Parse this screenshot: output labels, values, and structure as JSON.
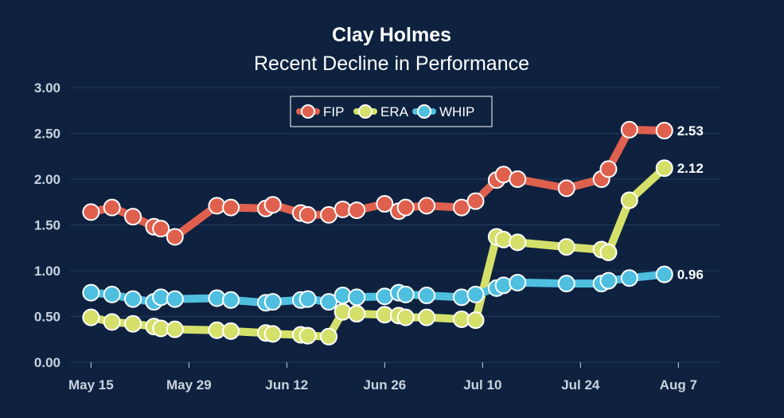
{
  "chart_data": {
    "type": "line",
    "title": "Clay Holmes",
    "subtitle": "Recent Decline in Performance",
    "xlabel": "",
    "ylabel": "",
    "ylim": [
      0,
      3
    ],
    "y_ticks": [
      "0.00",
      "0.50",
      "1.00",
      "1.50",
      "2.00",
      "2.50",
      "3.00"
    ],
    "x_ticks": [
      {
        "date": "2022-05-15",
        "label": "May 15"
      },
      {
        "date": "2022-05-29",
        "label": "May 29"
      },
      {
        "date": "2022-06-12",
        "label": "Jun 12"
      },
      {
        "date": "2022-06-26",
        "label": "Jun 26"
      },
      {
        "date": "2022-07-10",
        "label": "Jul 10"
      },
      {
        "date": "2022-07-24",
        "label": "Jul 24"
      },
      {
        "date": "2022-08-07",
        "label": "Aug 7"
      }
    ],
    "xlim": [
      "2022-05-12",
      "2022-08-13"
    ],
    "grid": true,
    "legend_position": "top-center",
    "series": [
      {
        "name": "FIP",
        "color": "#e0604e",
        "end_label": "2.53",
        "points": [
          [
            "2022-05-15",
            1.64
          ],
          [
            "2022-05-18",
            1.69
          ],
          [
            "2022-05-21",
            1.59
          ],
          [
            "2022-05-24",
            1.48
          ],
          [
            "2022-05-25",
            1.46
          ],
          [
            "2022-05-27",
            1.37
          ],
          [
            "2022-06-02",
            1.71
          ],
          [
            "2022-06-04",
            1.69
          ],
          [
            "2022-06-09",
            1.68
          ],
          [
            "2022-06-10",
            1.72
          ],
          [
            "2022-06-14",
            1.63
          ],
          [
            "2022-06-15",
            1.61
          ],
          [
            "2022-06-18",
            1.61
          ],
          [
            "2022-06-20",
            1.67
          ],
          [
            "2022-06-22",
            1.66
          ],
          [
            "2022-06-26",
            1.73
          ],
          [
            "2022-06-28",
            1.65
          ],
          [
            "2022-06-29",
            1.69
          ],
          [
            "2022-07-02",
            1.71
          ],
          [
            "2022-07-07",
            1.69
          ],
          [
            "2022-07-09",
            1.76
          ],
          [
            "2022-07-12",
            1.99
          ],
          [
            "2022-07-13",
            2.05
          ],
          [
            "2022-07-15",
            2.0
          ],
          [
            "2022-07-22",
            1.9
          ],
          [
            "2022-07-27",
            2.0
          ],
          [
            "2022-07-28",
            2.11
          ],
          [
            "2022-07-31",
            2.54
          ],
          [
            "2022-08-05",
            2.53
          ]
        ]
      },
      {
        "name": "ERA",
        "color": "#d4e06a",
        "end_label": "2.12",
        "points": [
          [
            "2022-05-15",
            0.49
          ],
          [
            "2022-05-18",
            0.44
          ],
          [
            "2022-05-21",
            0.42
          ],
          [
            "2022-05-24",
            0.39
          ],
          [
            "2022-05-25",
            0.37
          ],
          [
            "2022-05-27",
            0.36
          ],
          [
            "2022-06-02",
            0.35
          ],
          [
            "2022-06-04",
            0.34
          ],
          [
            "2022-06-09",
            0.32
          ],
          [
            "2022-06-10",
            0.31
          ],
          [
            "2022-06-14",
            0.3
          ],
          [
            "2022-06-15",
            0.29
          ],
          [
            "2022-06-18",
            0.28
          ],
          [
            "2022-06-20",
            0.55
          ],
          [
            "2022-06-22",
            0.53
          ],
          [
            "2022-06-26",
            0.52
          ],
          [
            "2022-06-28",
            0.51
          ],
          [
            "2022-06-29",
            0.49
          ],
          [
            "2022-07-02",
            0.49
          ],
          [
            "2022-07-07",
            0.47
          ],
          [
            "2022-07-09",
            0.46
          ],
          [
            "2022-07-12",
            1.37
          ],
          [
            "2022-07-13",
            1.34
          ],
          [
            "2022-07-15",
            1.31
          ],
          [
            "2022-07-22",
            1.26
          ],
          [
            "2022-07-27",
            1.23
          ],
          [
            "2022-07-28",
            1.2
          ],
          [
            "2022-07-31",
            1.77
          ],
          [
            "2022-08-05",
            2.12
          ]
        ]
      },
      {
        "name": "WHIP",
        "color": "#4fbfe0",
        "end_label": "0.96",
        "points": [
          [
            "2022-05-15",
            0.76
          ],
          [
            "2022-05-18",
            0.74
          ],
          [
            "2022-05-21",
            0.69
          ],
          [
            "2022-05-24",
            0.66
          ],
          [
            "2022-05-25",
            0.71
          ],
          [
            "2022-05-27",
            0.69
          ],
          [
            "2022-06-02",
            0.7
          ],
          [
            "2022-06-04",
            0.68
          ],
          [
            "2022-06-09",
            0.65
          ],
          [
            "2022-06-10",
            0.66
          ],
          [
            "2022-06-14",
            0.68
          ],
          [
            "2022-06-15",
            0.69
          ],
          [
            "2022-06-18",
            0.66
          ],
          [
            "2022-06-20",
            0.73
          ],
          [
            "2022-06-22",
            0.71
          ],
          [
            "2022-06-26",
            0.72
          ],
          [
            "2022-06-28",
            0.76
          ],
          [
            "2022-06-29",
            0.74
          ],
          [
            "2022-07-02",
            0.73
          ],
          [
            "2022-07-07",
            0.71
          ],
          [
            "2022-07-09",
            0.74
          ],
          [
            "2022-07-12",
            0.81
          ],
          [
            "2022-07-13",
            0.84
          ],
          [
            "2022-07-15",
            0.87
          ],
          [
            "2022-07-22",
            0.86
          ],
          [
            "2022-07-27",
            0.86
          ],
          [
            "2022-07-28",
            0.89
          ],
          [
            "2022-07-31",
            0.92
          ],
          [
            "2022-08-05",
            0.96
          ]
        ]
      }
    ]
  }
}
